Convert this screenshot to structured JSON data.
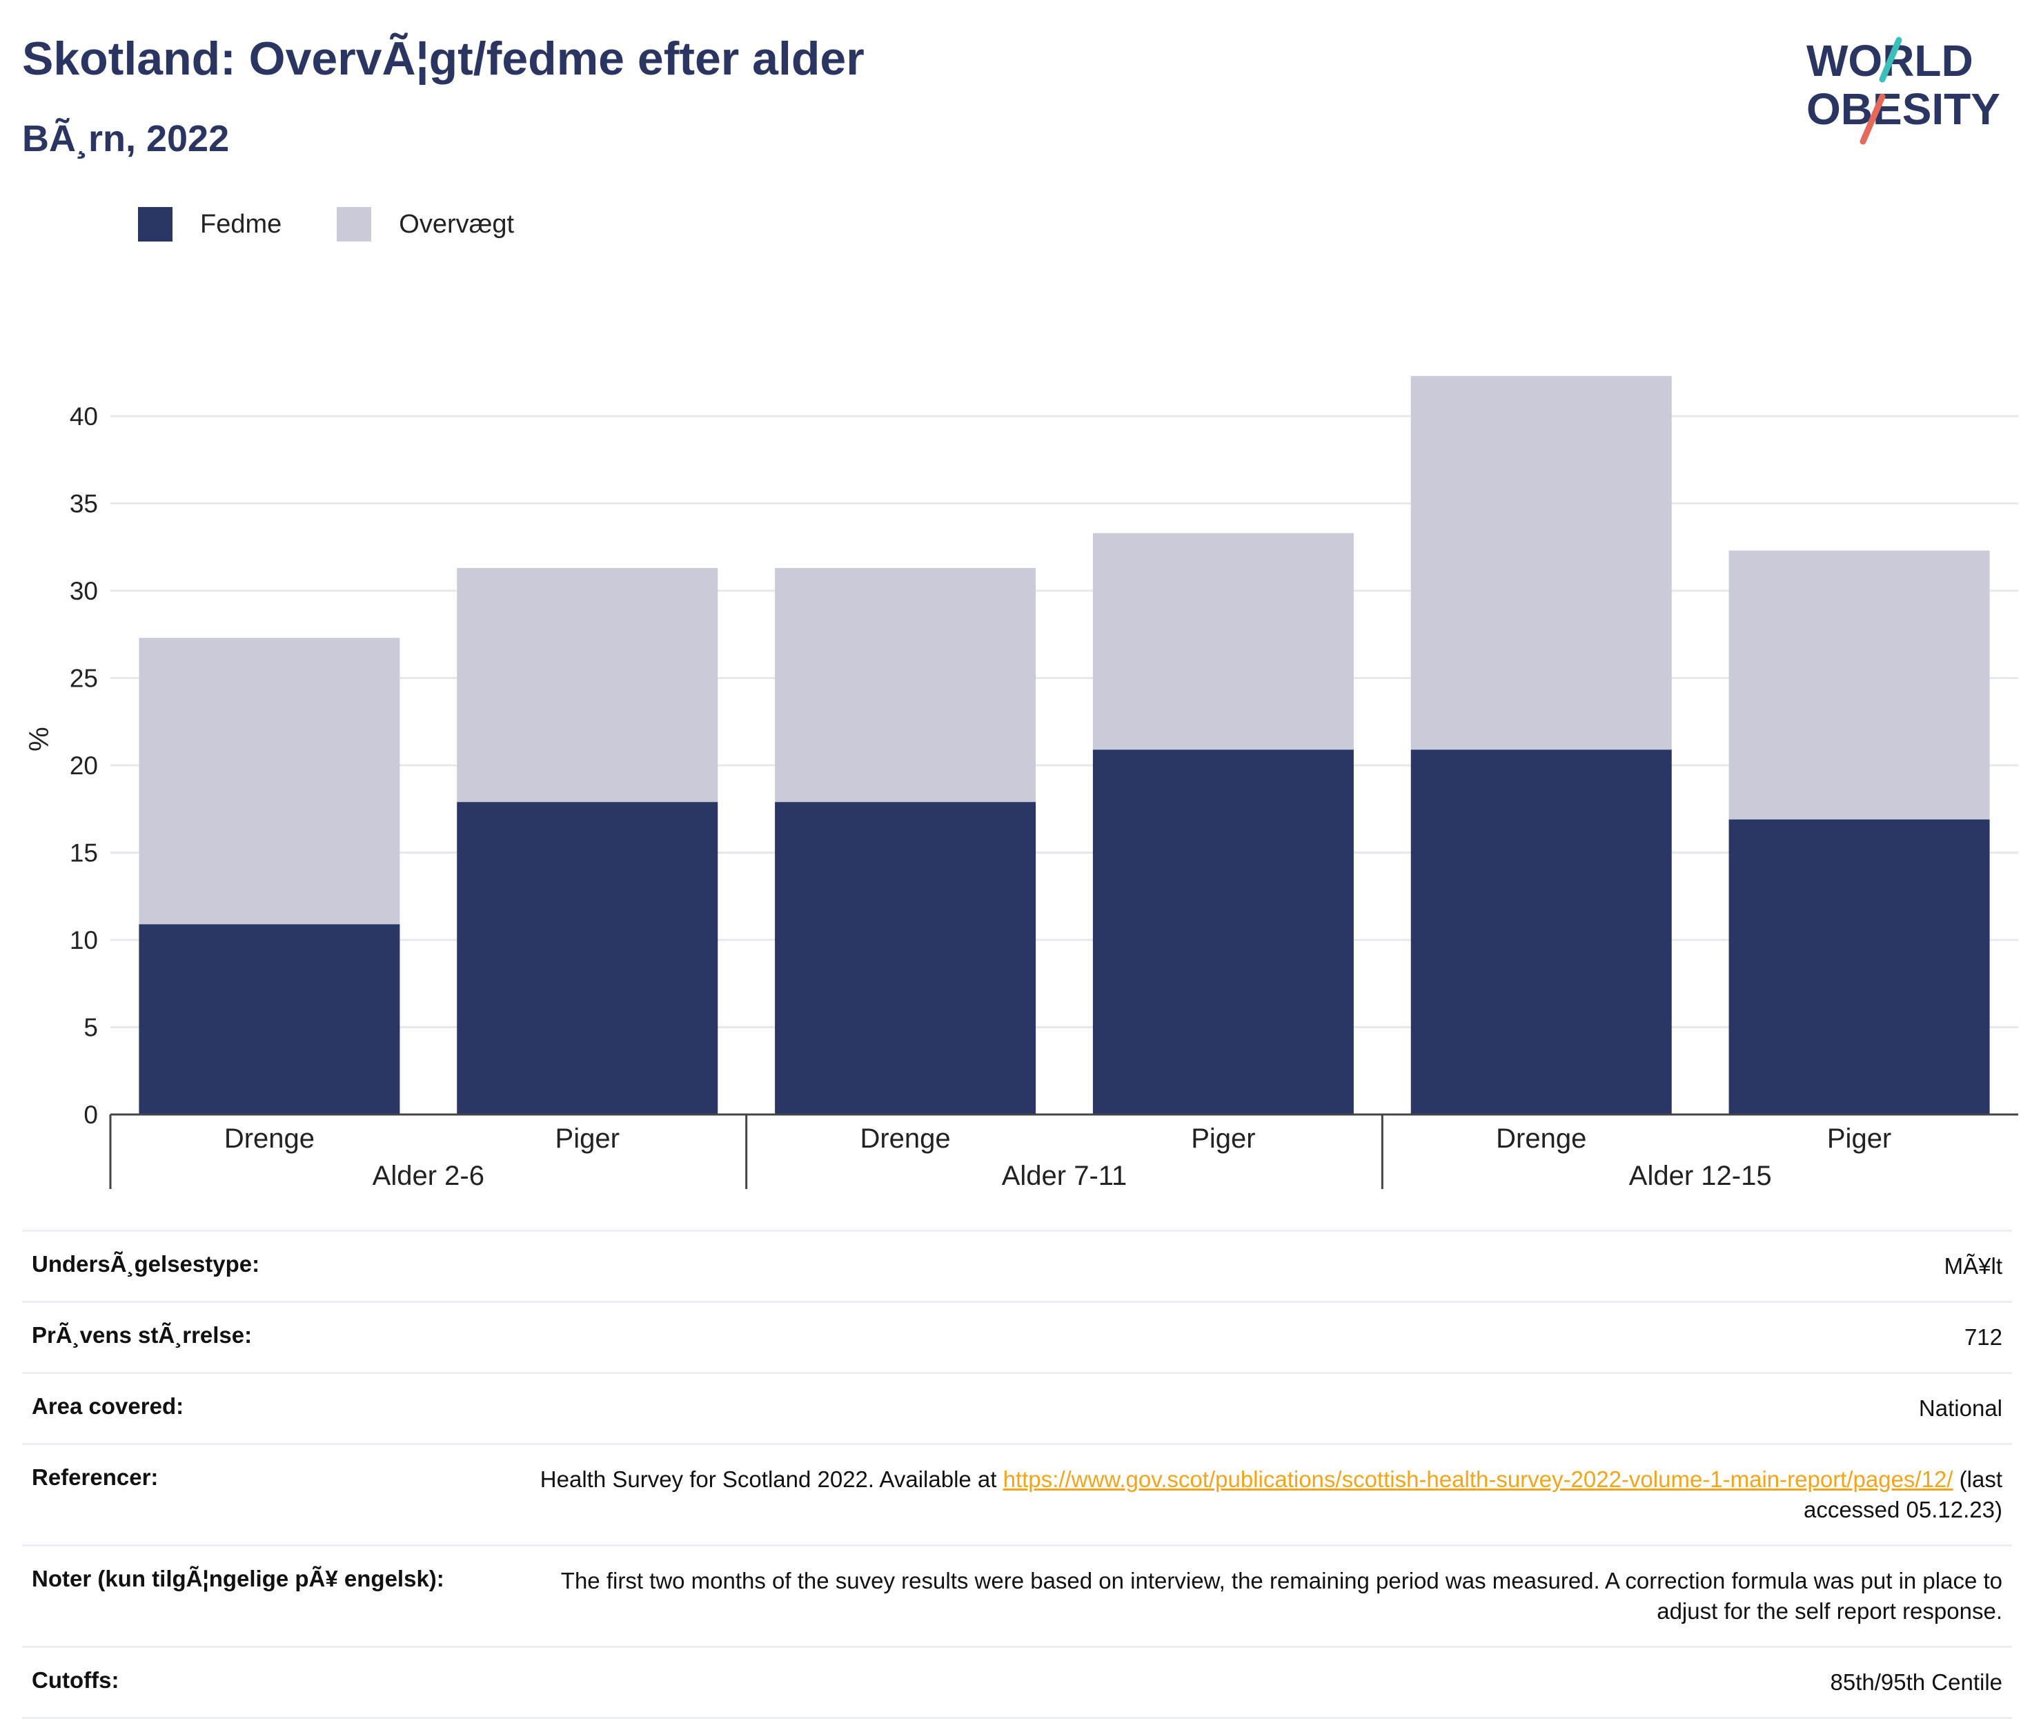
{
  "header": {
    "title": "Skotland: OvervÃ¦gt/fedme efter alder",
    "subtitle": "BÃ¸rn, 2022"
  },
  "logo": {
    "line1": "WORLD",
    "line2": "OBESITY"
  },
  "colors": {
    "fedme": "#2a3663",
    "overvaegt": "#c9ccd8",
    "title": "#2b3561",
    "link": "#f2a51a"
  },
  "legend": {
    "fedme_label": "Fedme",
    "overvaegt_label": "Overvægt"
  },
  "chart_data": {
    "type": "bar",
    "stacked": true,
    "ylabel": "%",
    "ylim": [
      0,
      43
    ],
    "yticks": [
      0,
      5,
      10,
      15,
      20,
      25,
      30,
      35,
      40
    ],
    "categories": [
      "Drenge",
      "Piger",
      "Drenge",
      "Piger",
      "Drenge",
      "Piger"
    ],
    "groups": [
      {
        "label": "Alder 2-6",
        "span": 2
      },
      {
        "label": "Alder 7-11",
        "span": 2
      },
      {
        "label": "Alder 12-15",
        "span": 2
      }
    ],
    "series": [
      {
        "name": "Fedme",
        "values": [
          10.9,
          17.9,
          17.9,
          20.9,
          20.9,
          16.9
        ]
      },
      {
        "name": "Overvægt",
        "values": [
          16.4,
          13.4,
          13.4,
          12.4,
          21.4,
          15.4
        ]
      }
    ],
    "grid": true,
    "legend_position": "top-left"
  },
  "meta": {
    "rows": [
      {
        "label": "UndersÃ¸gelsestype:",
        "value": "MÃ¥lt"
      },
      {
        "label": "PrÃ¸vens stÃ¸rrelse:",
        "value": "712"
      },
      {
        "label": "Area covered:",
        "value": "National"
      },
      {
        "label": "Referencer:",
        "value": "Health Survey for Scotland 2022. Available at ",
        "link": "https://www.gov.scot/publications/scottish-health-survey-2022-volume-1-main-report/pages/12/",
        "suffix": " (last accessed 05.12.23)"
      },
      {
        "label": "Noter (kun tilgÃ¦ngelige pÃ¥ engelsk):",
        "value": "The first two months of the suvey results were based on interview, the remaining period was measured. A correction formula was put in place to adjust for the self report response."
      },
      {
        "label": "Cutoffs:",
        "value": "85th/95th Centile"
      }
    ]
  }
}
